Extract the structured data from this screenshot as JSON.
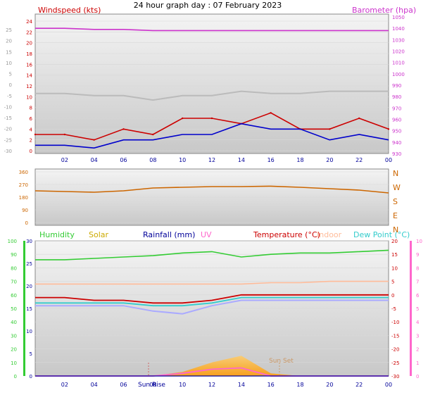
{
  "title": "24 hour graph day : 07 February 2023",
  "colors": {
    "wind": "#cc0000",
    "baro": "#cc33cc",
    "dir": "#cc6600",
    "humidity": "#33cc33",
    "solar": "#ccaa00",
    "rain": "#000099",
    "uv": "#ff66cc",
    "temperature": "#cc0000",
    "indoor": "#ffbb99",
    "dewpoint": "#33cccc",
    "apparent": "#aaaaff",
    "grey": "#bbbbbb"
  },
  "time_labels": [
    "02",
    "04",
    "06",
    "08",
    "10",
    "12",
    "14",
    "16",
    "18",
    "20",
    "22",
    "00"
  ],
  "panel1": {
    "left_title": "Windspeed (kts)",
    "right_title": "Barometer (hpa)",
    "left_ticks": [
      "24",
      "22",
      "20",
      "18",
      "16",
      "14",
      "12",
      "10",
      "8",
      "6",
      "4",
      "2",
      "0"
    ],
    "far_left_ticks": [
      "25",
      "20",
      "15",
      "10",
      "5",
      "0",
      "-5",
      "-10",
      "-15",
      "-20",
      "-25",
      "-30"
    ],
    "right_ticks": [
      "1050",
      "1040",
      "1030",
      "1020",
      "1010",
      "1000",
      "990",
      "980",
      "970",
      "960",
      "950",
      "940",
      "930"
    ]
  },
  "panel2": {
    "left_ticks": [
      "360",
      "270",
      "180",
      "90",
      "0"
    ],
    "compass": [
      "N",
      "W",
      "S",
      "E",
      "N"
    ]
  },
  "panel3": {
    "legend": {
      "humidity": "Humidity",
      "solar": "Solar",
      "rain": "Rainfall (mm)",
      "uv": "UV",
      "temperature": "Temperature (°C)",
      "indoor": "Indoor",
      "dewpoint": "Dew Point (°C)"
    },
    "humidity_ticks": [
      "100",
      "90",
      "80",
      "70",
      "60",
      "50",
      "40",
      "30",
      "20",
      "10",
      "0"
    ],
    "rain_ticks": [
      "30",
      "25",
      "20",
      "15",
      "10",
      "5",
      "0"
    ],
    "temp_ticks": [
      "20",
      "15",
      "10",
      "5",
      "0",
      "-5",
      "-10",
      "-15",
      "-20",
      "-25",
      "-30"
    ],
    "uv_ticks": [
      "10",
      "9",
      "8",
      "7",
      "6",
      "5",
      "4",
      "3",
      "2",
      "1",
      "0"
    ],
    "sun_rise": "Sun Rise",
    "sun_set": "Sun Set"
  },
  "chart_data": [
    {
      "type": "line",
      "title": "24 hour graph day : 07 February 2023",
      "x": [
        0,
        2,
        4,
        6,
        8,
        10,
        12,
        14,
        16,
        18,
        20,
        22,
        24
      ],
      "x_tick_labels": [
        "02",
        "04",
        "06",
        "08",
        "10",
        "12",
        "14",
        "16",
        "18",
        "20",
        "22",
        "00"
      ],
      "series": [
        {
          "name": "Windspeed (kts)",
          "axis": "left",
          "ylim": [
            0,
            24
          ],
          "values": [
            3,
            3,
            2,
            4,
            3,
            6,
            6,
            5,
            7,
            4,
            4,
            6,
            4
          ]
        },
        {
          "name": "Barometer (hpa)",
          "axis": "right",
          "ylim": [
            930,
            1050
          ],
          "values": [
            1040,
            1040,
            1039,
            1039,
            1038,
            1038,
            1038,
            1038,
            1038,
            1038,
            1038,
            1038,
            1038
          ]
        }
      ],
      "unnamed_series": [
        {
          "color": "grey",
          "axis": "far-left",
          "ylim": [
            -30,
            25
          ],
          "values": [
            -4,
            -4,
            -5,
            -5,
            -7,
            -5,
            -5,
            -3,
            -4,
            -4,
            -3,
            -3,
            -3
          ]
        },
        {
          "color": "blue",
          "axis": "left",
          "ylim": [
            0,
            24
          ],
          "values": [
            1,
            1,
            0.5,
            2,
            2,
            3,
            3,
            5,
            4,
            4,
            2,
            3,
            2
          ]
        }
      ]
    },
    {
      "type": "line",
      "x": [
        0,
        2,
        4,
        6,
        8,
        10,
        12,
        14,
        16,
        18,
        20,
        22,
        24
      ],
      "ylim": [
        0,
        360
      ],
      "series": [
        {
          "name": "Wind direction",
          "values": [
            225,
            220,
            215,
            225,
            245,
            250,
            255,
            255,
            258,
            250,
            240,
            230,
            210
          ]
        }
      ]
    },
    {
      "type": "area",
      "x": [
        0,
        2,
        4,
        6,
        8,
        10,
        12,
        14,
        16,
        18,
        20,
        22,
        24
      ],
      "series": [
        {
          "name": "Humidity",
          "axis": "humidity",
          "ylim": [
            0,
            100
          ],
          "values": [
            86,
            86,
            87,
            88,
            89,
            91,
            92,
            88,
            90,
            91,
            91,
            92,
            93
          ]
        },
        {
          "name": "Temperature (°C)",
          "axis": "temp",
          "ylim": [
            -30,
            20
          ],
          "values": [
            -1,
            -1,
            -2,
            -2,
            -3,
            -3,
            -2,
            0,
            0,
            0,
            0,
            0,
            0
          ]
        },
        {
          "name": "Indoor",
          "axis": "temp",
          "ylim": [
            -30,
            20
          ],
          "values": [
            4,
            4,
            4,
            4,
            4,
            4,
            4,
            4,
            4.5,
            4.5,
            5,
            5,
            5
          ]
        },
        {
          "name": "Dew Point (°C)",
          "axis": "temp",
          "ylim": [
            -30,
            20
          ],
          "values": [
            -3,
            -3,
            -3,
            -3,
            -4,
            -4,
            -3,
            -1,
            -1,
            -1,
            -1,
            -1,
            -1
          ]
        },
        {
          "name": "Solar",
          "axis": "uv",
          "ylim": [
            0,
            10
          ],
          "values": [
            0,
            0,
            0,
            0,
            0,
            0.3,
            1,
            1.5,
            0.2,
            0,
            0,
            0,
            0
          ]
        },
        {
          "name": "UV",
          "axis": "uv",
          "ylim": [
            0,
            10
          ],
          "values": [
            0,
            0,
            0,
            0,
            0,
            0.2,
            0.5,
            0.6,
            0,
            0,
            0,
            0,
            0
          ]
        },
        {
          "name": "Rainfall (mm)",
          "axis": "rain",
          "ylim": [
            0,
            30
          ],
          "values": [
            0,
            0,
            0,
            0,
            0,
            0,
            0,
            0,
            0,
            0,
            0,
            0,
            0
          ]
        }
      ],
      "unnamed_series": [
        {
          "color": "lavender",
          "axis": "temp",
          "ylim": [
            -30,
            20
          ],
          "values": [
            -4,
            -4,
            -4,
            -4,
            -6,
            -7,
            -4,
            -2,
            -2,
            -2,
            -2,
            -2,
            -2
          ]
        }
      ]
    }
  ]
}
